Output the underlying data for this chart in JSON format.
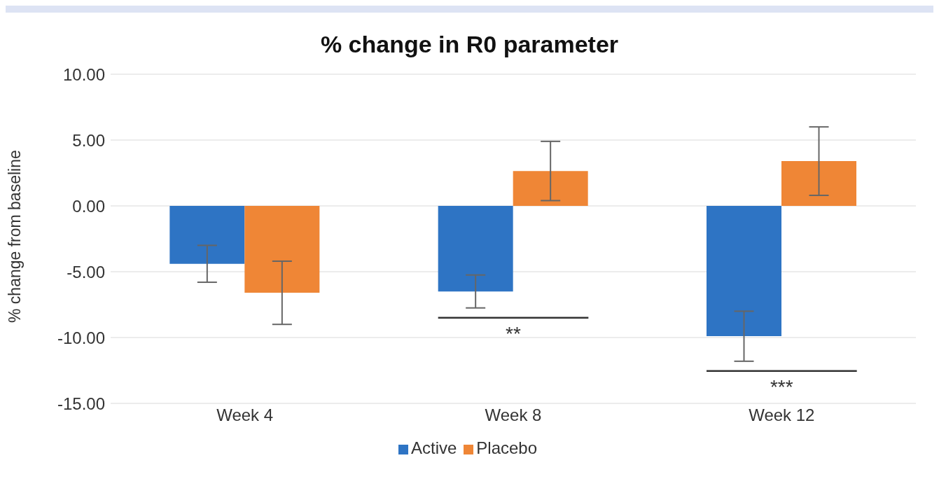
{
  "chart_data": {
    "type": "bar",
    "title": "% change in R0 parameter",
    "ylabel": "% change from baseline",
    "categories": [
      "Week 4",
      "Week 8",
      "Week 12"
    ],
    "series": [
      {
        "name": "Active",
        "color": "#2e74c4",
        "values": [
          -4.4,
          -6.5,
          -9.9
        ],
        "errors": [
          1.4,
          1.25,
          1.9
        ]
      },
      {
        "name": "Placebo",
        "color": "#ef8636",
        "values": [
          -6.6,
          2.65,
          3.4
        ],
        "errors": [
          2.4,
          2.25,
          2.6
        ]
      }
    ],
    "ylim": [
      -15,
      10
    ],
    "yticks": [
      {
        "value": -15,
        "label": "-15.00"
      },
      {
        "value": -10,
        "label": "-10.00"
      },
      {
        "value": -5,
        "label": "-5.00"
      },
      {
        "value": 0,
        "label": "0.00"
      },
      {
        "value": 5,
        "label": "5.00"
      },
      {
        "value": 10,
        "label": "10.00"
      }
    ],
    "grid": "y",
    "legend": "bottom",
    "annotations": [
      "**",
      "***"
    ]
  }
}
